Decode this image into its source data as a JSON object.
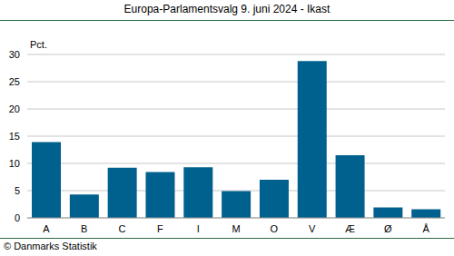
{
  "chart_data": {
    "type": "bar",
    "title": "Europa-Parlamentsvalg 9. juni 2024 - Ikast",
    "ylabel": "Pct.",
    "source": "© Danmarks Statistik",
    "categories": [
      "A",
      "B",
      "C",
      "F",
      "I",
      "M",
      "O",
      "V",
      "Æ",
      "Ø",
      "Å"
    ],
    "values": [
      13.9,
      4.3,
      9.2,
      8.4,
      9.3,
      4.9,
      7.0,
      28.8,
      11.5,
      1.9,
      1.6
    ],
    "color": "#00618f",
    "ylim": [
      0,
      30
    ],
    "yticks": [
      0,
      5,
      10,
      15,
      20,
      25,
      30
    ],
    "grid": true
  }
}
